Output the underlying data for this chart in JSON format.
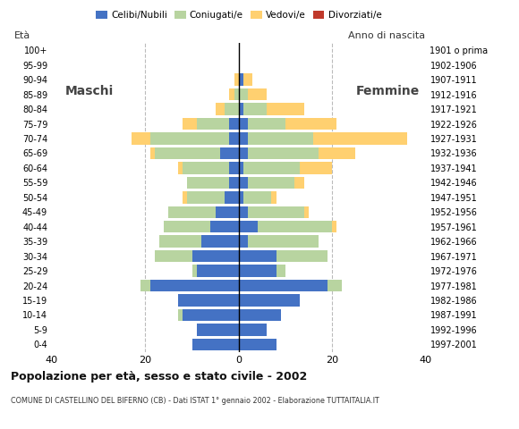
{
  "age_groups": [
    "0-4",
    "5-9",
    "10-14",
    "15-19",
    "20-24",
    "25-29",
    "30-34",
    "35-39",
    "40-44",
    "45-49",
    "50-54",
    "55-59",
    "60-64",
    "65-69",
    "70-74",
    "75-79",
    "80-84",
    "85-89",
    "90-94",
    "95-99",
    "100+"
  ],
  "birth_years": [
    "1997-2001",
    "1992-1996",
    "1987-1991",
    "1982-1986",
    "1977-1981",
    "1972-1976",
    "1967-1971",
    "1962-1966",
    "1957-1961",
    "1952-1956",
    "1947-1951",
    "1942-1946",
    "1937-1941",
    "1932-1936",
    "1927-1931",
    "1922-1926",
    "1917-1921",
    "1912-1916",
    "1907-1911",
    "1902-1906",
    "1901 o prima"
  ],
  "males": {
    "celibi": [
      10,
      9,
      12,
      13,
      19,
      9,
      10,
      8,
      6,
      5,
      3,
      2,
      2,
      4,
      2,
      2,
      0,
      0,
      0,
      0,
      0
    ],
    "coniugati": [
      0,
      0,
      1,
      0,
      2,
      1,
      8,
      9,
      10,
      10,
      8,
      9,
      10,
      14,
      17,
      7,
      3,
      1,
      0,
      0,
      0
    ],
    "vedovi": [
      0,
      0,
      0,
      0,
      0,
      0,
      0,
      0,
      0,
      0,
      1,
      0,
      1,
      1,
      4,
      3,
      2,
      1,
      1,
      0,
      0
    ],
    "divorziati": [
      0,
      0,
      0,
      0,
      0,
      0,
      0,
      0,
      0,
      0,
      0,
      0,
      0,
      0,
      0,
      0,
      0,
      0,
      0,
      0,
      0
    ]
  },
  "females": {
    "nubili": [
      8,
      6,
      9,
      13,
      19,
      8,
      8,
      2,
      4,
      2,
      1,
      2,
      1,
      2,
      2,
      2,
      1,
      0,
      1,
      0,
      0
    ],
    "coniugate": [
      0,
      0,
      0,
      0,
      3,
      2,
      11,
      15,
      16,
      12,
      6,
      10,
      12,
      15,
      14,
      8,
      5,
      2,
      0,
      0,
      0
    ],
    "vedove": [
      0,
      0,
      0,
      0,
      0,
      0,
      0,
      0,
      1,
      1,
      1,
      2,
      7,
      8,
      20,
      11,
      8,
      4,
      2,
      0,
      0
    ],
    "divorziate": [
      0,
      0,
      0,
      0,
      0,
      0,
      0,
      0,
      0,
      0,
      0,
      0,
      0,
      0,
      0,
      0,
      0,
      0,
      0,
      0,
      0
    ]
  },
  "color_celibi": "#4472C4",
  "color_coniugati": "#B8D4A0",
  "color_vedovi": "#FFD070",
  "color_divorziati": "#C0392B",
  "xlim": 40,
  "title": "Popolazione per età, sesso e stato civile - 2002",
  "subtitle": "COMUNE DI CASTELLINO DEL BIFERNO (CB) - Dati ISTAT 1° gennaio 2002 - Elaborazione TUTTAITALIA.IT",
  "label_maschi": "Maschi",
  "label_femmine": "Femmine",
  "label_eta": "Età",
  "label_anno": "Anno di nascita",
  "bg_color": "#FFFFFF",
  "grid_color": "#BBBBBB",
  "legend_labels": [
    "Celibi/Nubili",
    "Coniugati/e",
    "Vedovi/e",
    "Divorziati/e"
  ]
}
